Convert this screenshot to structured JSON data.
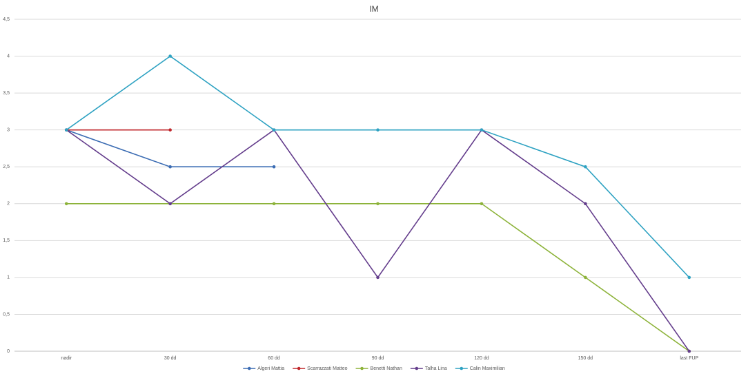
{
  "chart_data": {
    "type": "line",
    "title": "IM",
    "categories": [
      "nadir",
      "30 dd",
      "60 dd",
      "90 dd",
      "120 dd",
      "150 dd",
      "last FUP"
    ],
    "series": [
      {
        "name": "Algeri Mattia",
        "color": "#3b6cb3",
        "values": [
          3,
          2.5,
          2.5,
          null,
          null,
          null,
          null
        ]
      },
      {
        "name": "Scarrazzati Matteo",
        "color": "#c0282d",
        "values": [
          3,
          3,
          null,
          null,
          null,
          null,
          null
        ]
      },
      {
        "name": "Benetti Nathan",
        "color": "#8db33a",
        "values": [
          2,
          2,
          2,
          2,
          2,
          1,
          0
        ]
      },
      {
        "name": "Talha Lina",
        "color": "#643d8c",
        "values": [
          3,
          2,
          3,
          1,
          3,
          2,
          0
        ]
      },
      {
        "name": "Calin Maximilian",
        "color": "#2ea2c2",
        "values": [
          3,
          4,
          3,
          3,
          3,
          2.5,
          1
        ]
      }
    ],
    "ylim": [
      0,
      4.5
    ],
    "yticks": [
      0,
      {
        "value": 0.5,
        "label": "0,5"
      },
      1,
      {
        "value": 1.5,
        "label": "1,5"
      },
      2,
      {
        "value": 2.5,
        "label": "2,5"
      },
      3,
      {
        "value": 3.5,
        "label": "3,5"
      },
      4,
      {
        "value": 4.5,
        "label": "4,5"
      }
    ],
    "grid": true,
    "legend": "bottom"
  }
}
